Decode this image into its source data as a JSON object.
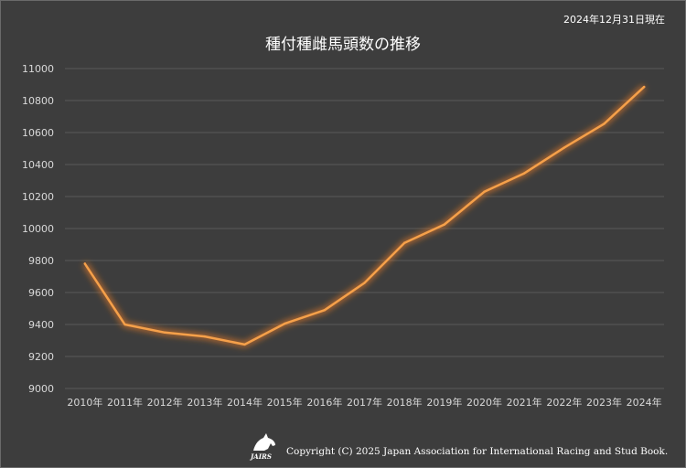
{
  "as_of": "2024年12月31日現在",
  "footer": {
    "logo_text": "JAIRS",
    "copyright": "Copyright (C) 2025 Japan Association for International Racing and Stud Book."
  },
  "colors": {
    "background": "#3d3d3d",
    "gridline": "#595959",
    "line": "#f5a04a",
    "glow": "#e0782a"
  },
  "chart_data": {
    "type": "line",
    "title": "種付種雌馬頭数の推移",
    "categories": [
      "2010年",
      "2011年",
      "2012年",
      "2013年",
      "2014年",
      "2015年",
      "2016年",
      "2017年",
      "2018年",
      "2019年",
      "2020年",
      "2021年",
      "2022年",
      "2023年",
      "2024年"
    ],
    "series": [
      {
        "values": [
          9780,
          9400,
          9350,
          9325,
          9275,
          9405,
          9490,
          9660,
          9910,
          10025,
          10230,
          10345,
          10505,
          10655,
          10885
        ]
      }
    ],
    "ylim": [
      9000,
      11000
    ],
    "yticks": [
      9000,
      9200,
      9400,
      9600,
      9800,
      10000,
      10200,
      10400,
      10600,
      10800,
      11000
    ],
    "grid": true,
    "legend": "none",
    "xlabel": "",
    "ylabel": ""
  }
}
